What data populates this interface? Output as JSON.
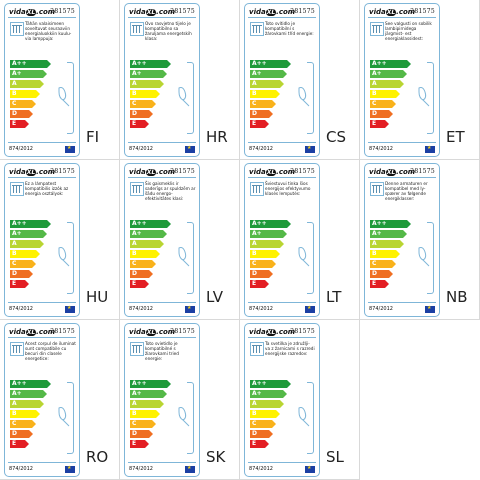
{
  "brand": {
    "prefix": "vida",
    "xl": "XL",
    "suffix": ".com"
  },
  "product_code": "281575",
  "regulation": "874/2012",
  "energy_classes": [
    {
      "label": "A++",
      "color": "#1f9a3a"
    },
    {
      "label": "A+",
      "color": "#54b848"
    },
    {
      "label": "A",
      "color": "#b9d531"
    },
    {
      "label": "B",
      "color": "#fff200"
    },
    {
      "label": "C",
      "color": "#f9b21b"
    },
    {
      "label": "D",
      "color": "#ef6f22"
    },
    {
      "label": "E",
      "color": "#e31e24"
    }
  ],
  "labels": [
    {
      "lang": "FI",
      "text": "Tähän valaisimeen soveltuvat seuraaviin energialuokkiin kuulu- via lamppuja:"
    },
    {
      "lang": "HR",
      "text": "Ovo rasvjetno tijelo je kompatibilno sa žaruljama energetskih klasa:"
    },
    {
      "lang": "CS",
      "text": "Toto svítidlo je kompatibilní s žárovkami tříd energie:"
    },
    {
      "lang": "ET",
      "text": "See valgusti on sobilik lambipirnidega järgmist- est energiaklassidest:"
    },
    {
      "lang": "HU",
      "text": "Ez a lámpatest kompatibilis izzók az energia osztályok:"
    },
    {
      "lang": "LV",
      "text": "Šis gaismeklis ir saderīgs ar spuldzēm ar šādu energo- efektivitātes klasi:"
    },
    {
      "lang": "LT",
      "text": "Šviestuvui tinka šios energijos efektyvumo klasės lemputės:"
    },
    {
      "lang": "NB",
      "text": "Denne armaturen er kompatibel med ly- spærer av følgende energiklasser:"
    },
    {
      "lang": "RO",
      "text": "Acest corpul de iluminat sunt compatibile cu becuri din clasele energetice:"
    },
    {
      "lang": "SK",
      "text": "Toto svietidlo je kompatibilné s žiarovkami tried energie:"
    },
    {
      "lang": "SL",
      "text": "Ta svetilka je združlji- va z žarnicami s razredi energijske razredov:"
    }
  ]
}
